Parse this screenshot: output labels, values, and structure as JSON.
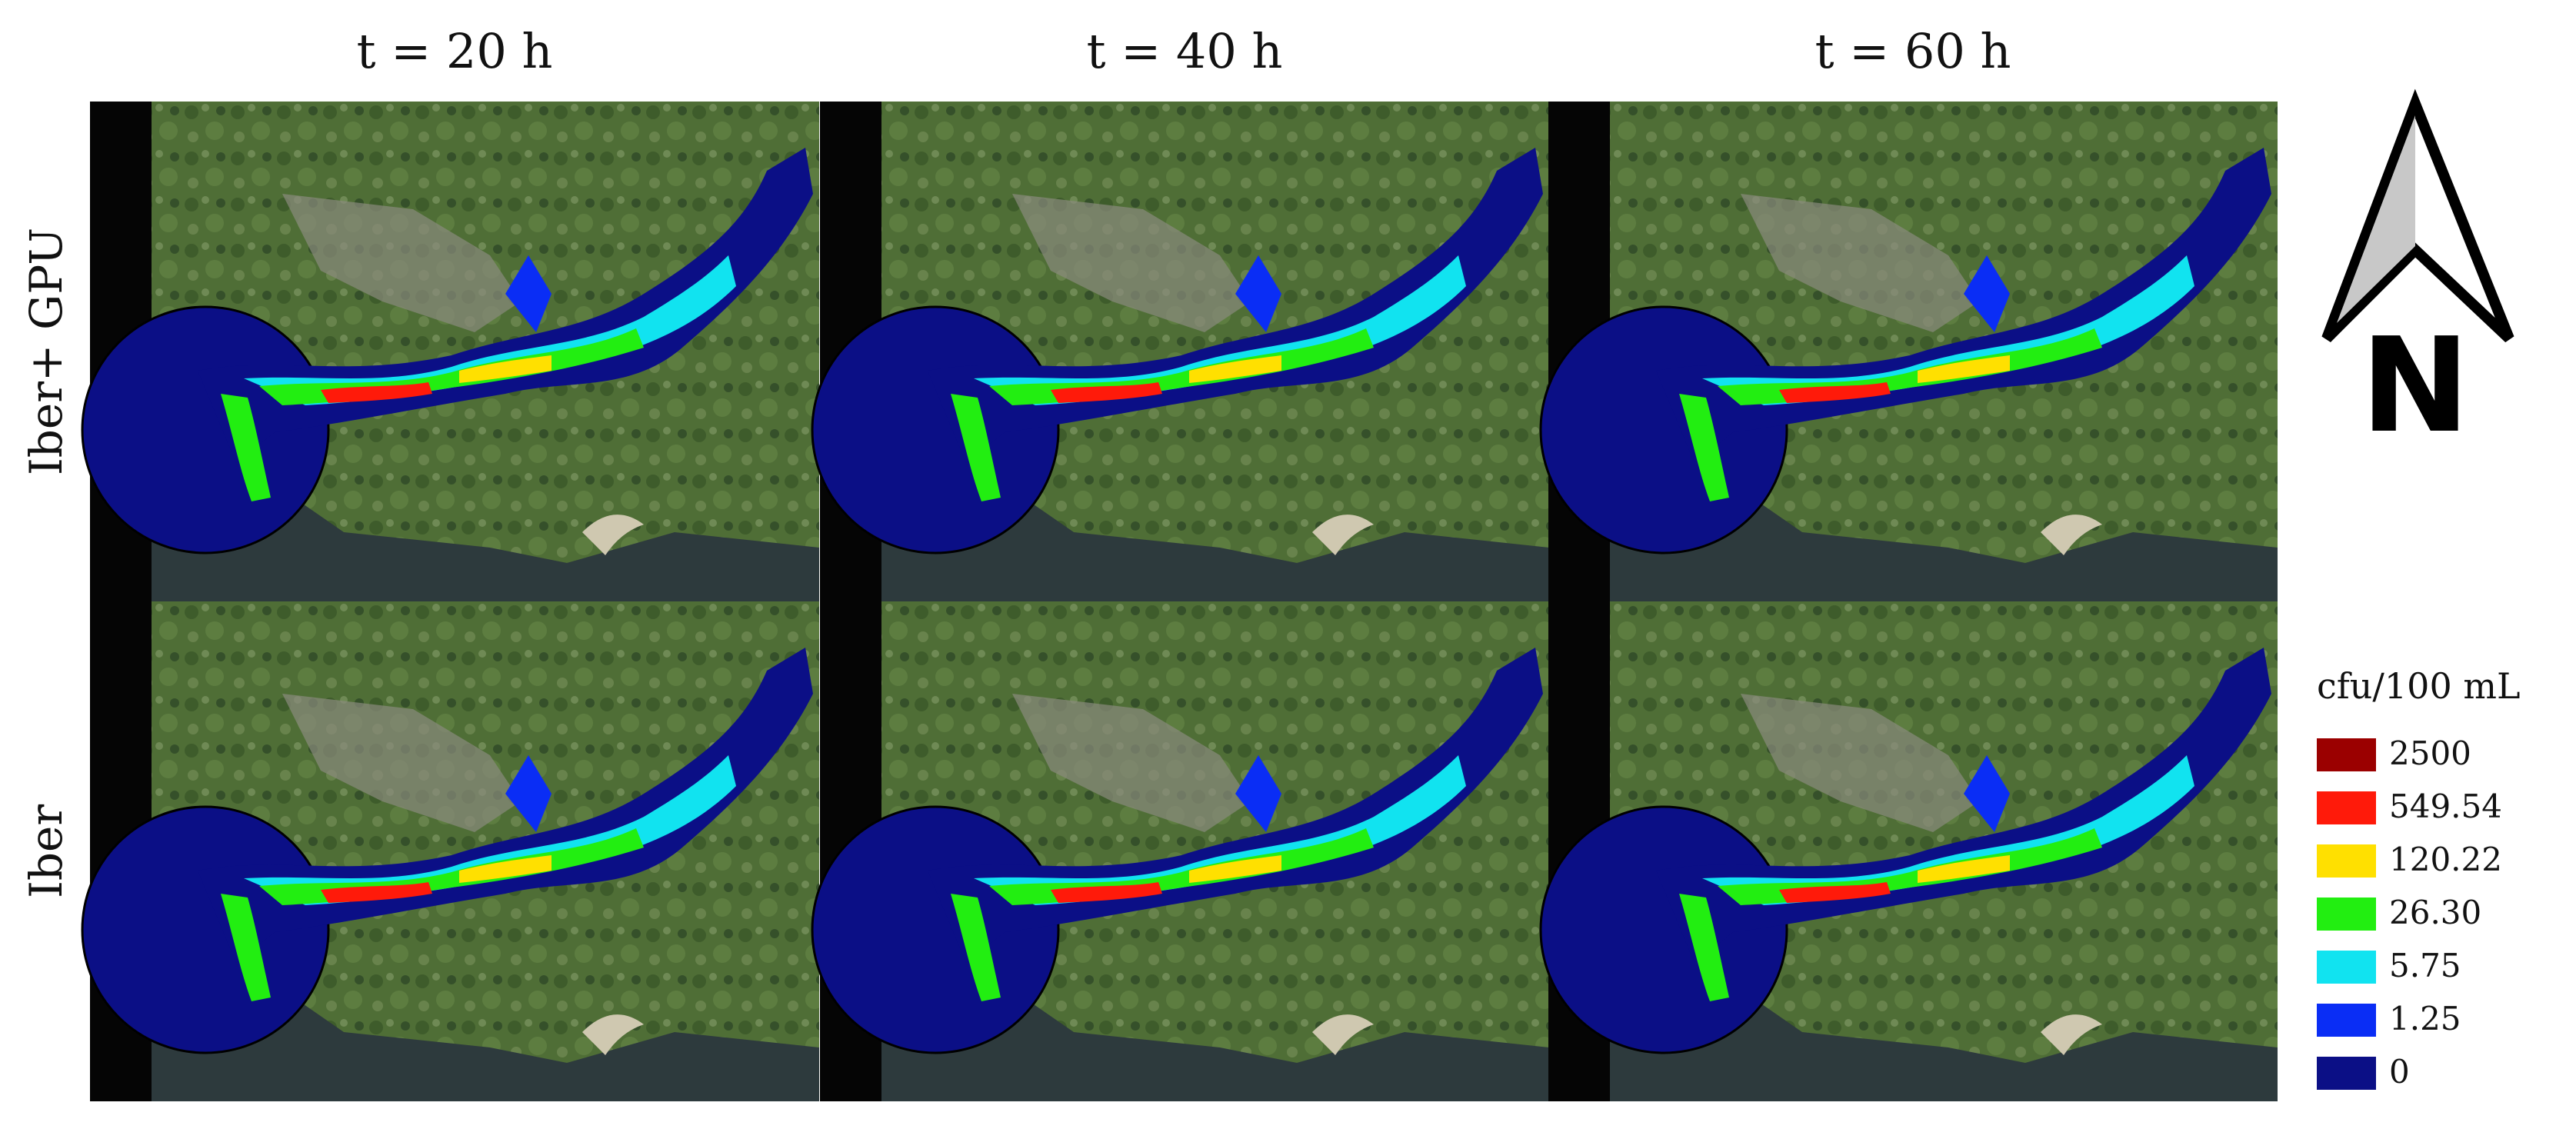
{
  "columns": [
    "t = 20 h",
    "t = 40 h",
    "t = 60 h"
  ],
  "rows": [
    "Iber+ GPU",
    "Iber"
  ],
  "north": "N",
  "legend": {
    "title": "cfu/100 mL",
    "items": [
      {
        "label": "2500",
        "color": "#9b0000"
      },
      {
        "label": "549.54",
        "color": "#ff1a0a"
      },
      {
        "label": "120.22",
        "color": "#ffe000"
      },
      {
        "label": "26.30",
        "color": "#22ee11"
      },
      {
        "label": "5.75",
        "color": "#11e3f0"
      },
      {
        "label": "1.25",
        "color": "#0a2df5"
      },
      {
        "label": "0",
        "color": "#0b0f86"
      }
    ]
  }
}
